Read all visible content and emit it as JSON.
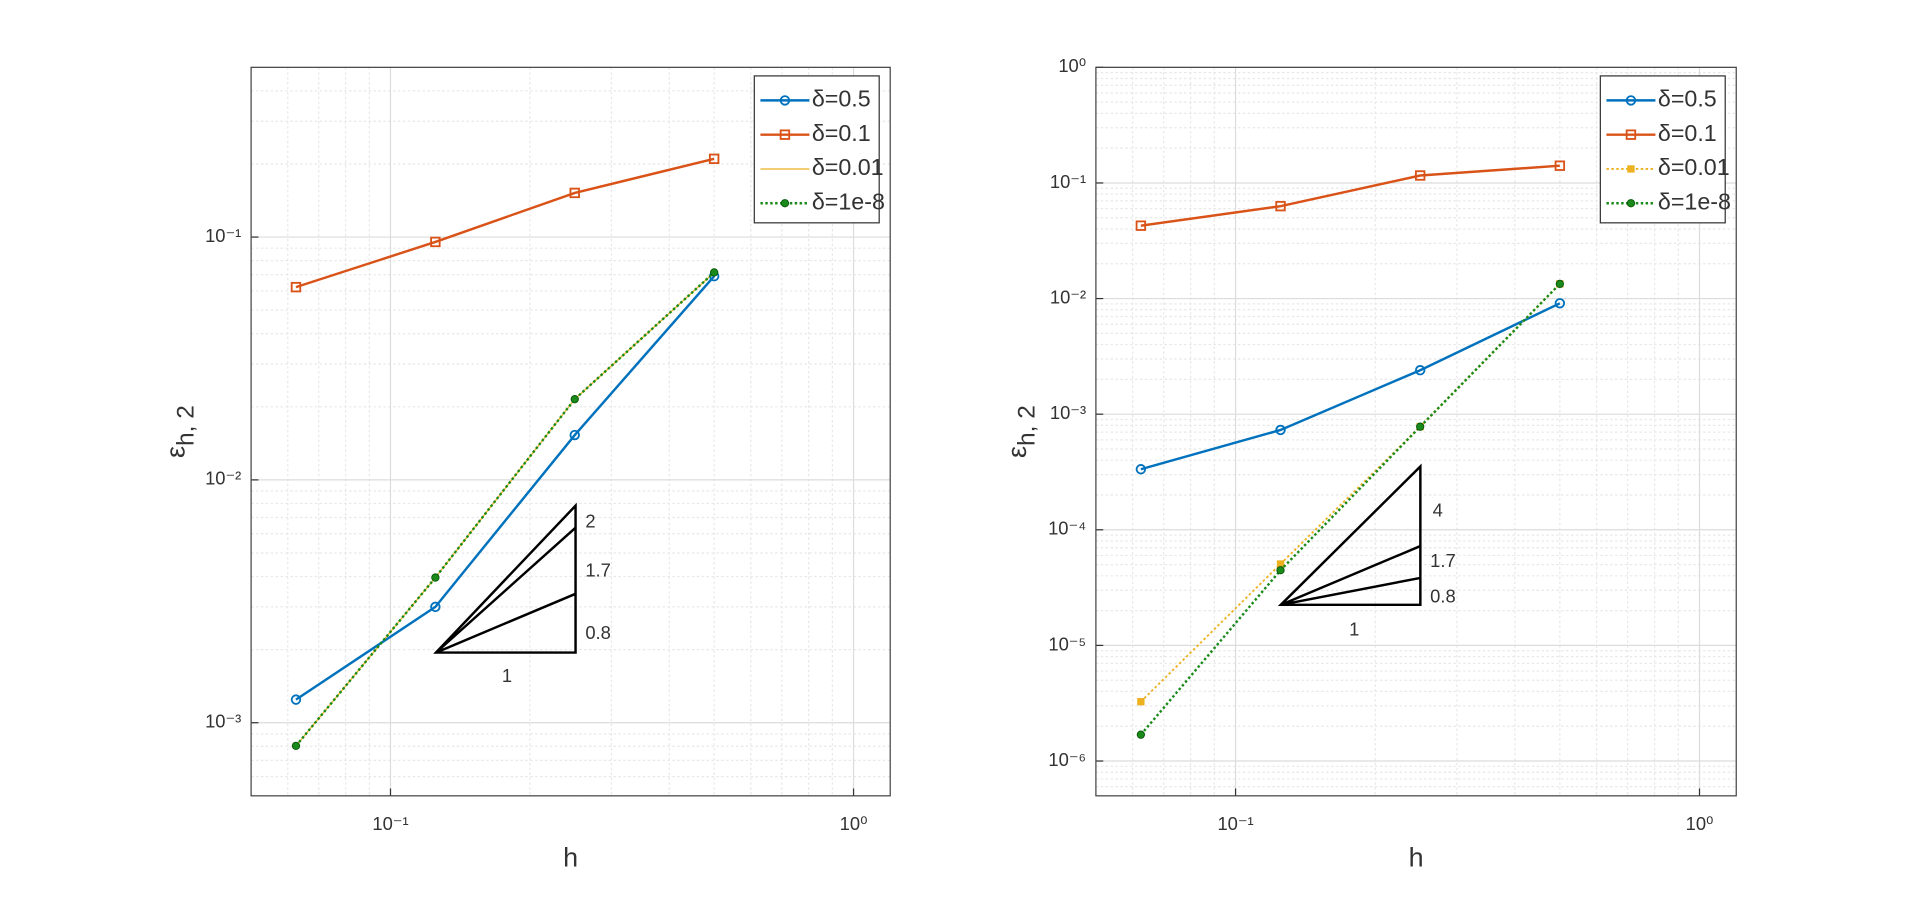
{
  "chart_data": [
    {
      "type": "line",
      "xlabel": "h",
      "ylabel": "ε",
      "ylabel_sub": "h, 2",
      "xscale": "log",
      "yscale": "log",
      "grid": true,
      "legend": "upper right",
      "x": [
        0.0625,
        0.125,
        0.25,
        0.5
      ],
      "xlim": [
        0.05,
        1.2
      ],
      "xticks": [
        {
          "value": 0.1,
          "label": "10⁻¹"
        },
        {
          "value": 1,
          "label": "10⁰"
        }
      ],
      "ylim": [
        0.0005,
        0.5
      ],
      "yticks": [
        {
          "value": 0.001,
          "label": "10⁻³"
        },
        {
          "value": 0.01,
          "label": "10⁻²"
        },
        {
          "value": 0.1,
          "label": "10⁻¹"
        }
      ],
      "series": [
        {
          "name": "δ=0.01",
          "color": "#EDB120",
          "linestyle": "solid",
          "linewidth": 1,
          "marker": "none",
          "values": [
            0.000803,
            0.00396,
            0.0215,
            0.0715
          ]
        },
        {
          "name": "δ=0.5",
          "color": "#0072BD",
          "linestyle": "solid",
          "linewidth": 2,
          "marker": "circle",
          "values": [
            0.001245,
            0.003,
            0.0153,
            0.069
          ]
        },
        {
          "name": "δ=0.1",
          "color": "#D95319",
          "linestyle": "solid",
          "linewidth": 2,
          "marker": "square",
          "values": [
            0.0622,
            0.0955,
            0.152,
            0.21
          ]
        },
        {
          "name": "δ=1e-8",
          "color": "#1a8a1a",
          "linestyle": "dotted",
          "linewidth": 2,
          "marker": "dot",
          "values": [
            0.000803,
            0.00396,
            0.0215,
            0.0715
          ]
        }
      ],
      "legend_order": [
        1,
        2,
        0,
        3
      ],
      "annotations": [
        "2",
        "1.7",
        "0.8",
        "1"
      ]
    },
    {
      "type": "line",
      "xlabel": "h",
      "ylabel": "ε",
      "ylabel_sub": "h, 2",
      "xscale": "log",
      "yscale": "log",
      "grid": true,
      "legend": "upper right",
      "x": [
        0.0625,
        0.125,
        0.25,
        0.5
      ],
      "xlim": [
        0.05,
        1.2
      ],
      "xticks": [
        {
          "value": 0.1,
          "label": "10⁻¹"
        },
        {
          "value": 1,
          "label": "10⁰"
        }
      ],
      "ylim": [
        5e-07,
        1
      ],
      "yticks": [
        {
          "value": 1e-06,
          "label": "10⁻⁶"
        },
        {
          "value": 1e-05,
          "label": "10⁻⁵"
        },
        {
          "value": 0.0001,
          "label": "10⁻⁴"
        },
        {
          "value": 0.001,
          "label": "10⁻³"
        },
        {
          "value": 0.01,
          "label": "10⁻²"
        },
        {
          "value": 0.1,
          "label": "10⁻¹"
        },
        {
          "value": 1,
          "label": "10⁰"
        }
      ],
      "series": [
        {
          "name": "δ=0.5",
          "color": "#0072BD",
          "linestyle": "solid",
          "linewidth": 2,
          "marker": "circle",
          "values": [
            0.000334,
            0.00073,
            0.0024,
            0.0091
          ]
        },
        {
          "name": "δ=0.1",
          "color": "#D95319",
          "linestyle": "solid",
          "linewidth": 2,
          "marker": "square",
          "values": [
            0.0427,
            0.063,
            0.116,
            0.141
          ]
        },
        {
          "name": "δ=0.01",
          "color": "#EDB120",
          "linestyle": "dotted",
          "linewidth": 1.5,
          "marker": "fsquare",
          "values": [
            3.26e-06,
            5.06e-05,
            0.00078,
            0.0134
          ]
        },
        {
          "name": "δ=1e-8",
          "color": "#1a8a1a",
          "linestyle": "dotted",
          "linewidth": 2,
          "marker": "dot",
          "values": [
            1.69e-06,
            4.47e-05,
            0.00078,
            0.0134
          ]
        }
      ],
      "legend_order": [
        0,
        1,
        2,
        3
      ],
      "annotations": [
        "4",
        "1.7",
        "0.8",
        "1"
      ]
    }
  ]
}
